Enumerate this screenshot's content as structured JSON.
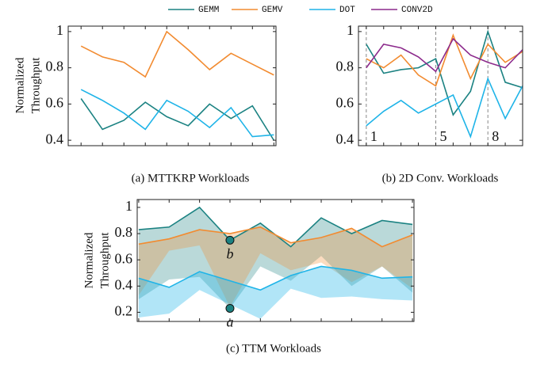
{
  "chart_data": [
    {
      "type": "line",
      "caption": "(a) MTTKRP Workloads",
      "ylabel": [
        "Normalized",
        "Throughput"
      ],
      "x": [
        1,
        2,
        3,
        4,
        5,
        6,
        7,
        8,
        9,
        10
      ],
      "xlim": [
        0.4,
        10.1
      ],
      "ylim": [
        0.37,
        1.03
      ],
      "yticks": [
        0.4,
        0.6,
        0.8,
        1
      ],
      "series": [
        {
          "color": "#1b8282",
          "values": [
            0.63,
            0.46,
            0.51,
            0.61,
            0.53,
            0.48,
            0.6,
            0.52,
            0.59,
            0.4
          ]
        },
        {
          "color": "#f28b30",
          "values": [
            0.92,
            0.86,
            0.83,
            0.75,
            1.0,
            0.9,
            0.79,
            0.88,
            0.82,
            0.76
          ]
        },
        {
          "color": "#1fb4e8",
          "values": [
            0.68,
            0.62,
            0.55,
            0.46,
            0.62,
            0.56,
            0.47,
            0.58,
            0.42,
            0.43
          ]
        }
      ]
    },
    {
      "type": "line",
      "caption": "(b) 2D Conv. Workloads",
      "x": [
        1,
        2,
        3,
        4,
        5,
        6,
        7,
        8,
        9,
        10
      ],
      "xlim": [
        0.55,
        10.0
      ],
      "ylim": [
        0.37,
        1.03
      ],
      "yticks": [
        0.4,
        0.6,
        0.8,
        1
      ],
      "markers": [
        1,
        5,
        8
      ],
      "series": [
        {
          "name": "GEMM",
          "color": "#1b8282",
          "values": [
            0.93,
            0.77,
            0.79,
            0.8,
            0.85,
            0.54,
            0.67,
            1.0,
            0.72,
            0.69
          ]
        },
        {
          "name": "GEMV",
          "color": "#f28b30",
          "values": [
            0.85,
            0.8,
            0.87,
            0.76,
            0.7,
            0.98,
            0.74,
            0.93,
            0.83,
            0.89
          ]
        },
        {
          "name": "DOT",
          "color": "#1fb4e8",
          "values": [
            0.48,
            0.56,
            0.62,
            0.55,
            0.6,
            0.65,
            0.42,
            0.74,
            0.52,
            0.7
          ]
        },
        {
          "name": "CONV2D",
          "color": "#8c2a8c",
          "values": [
            0.8,
            0.93,
            0.91,
            0.86,
            0.78,
            0.96,
            0.87,
            0.83,
            0.8,
            0.9
          ]
        }
      ]
    },
    {
      "type": "band",
      "caption": "(c) TTM Workloads",
      "ylabel": [
        "Normalized",
        "Throughput"
      ],
      "x": [
        1,
        2,
        3,
        4,
        5,
        6,
        7,
        8,
        9,
        10
      ],
      "xlim": [
        0.95,
        10.05
      ],
      "ylim": [
        0.13,
        1.06
      ],
      "yticks": [
        0.2,
        0.4,
        0.6,
        0.8,
        1
      ],
      "series": [
        {
          "color": "#1b8282",
          "values": [
            0.83,
            0.85,
            1.0,
            0.75,
            0.88,
            0.7,
            0.92,
            0.8,
            0.9,
            0.87
          ],
          "low": [
            0.3,
            0.45,
            0.47,
            0.23,
            0.55,
            0.44,
            0.63,
            0.4,
            0.55,
            0.35
          ]
        },
        {
          "color": "#f28b30",
          "values": [
            0.72,
            0.76,
            0.83,
            0.8,
            0.85,
            0.73,
            0.77,
            0.84,
            0.7,
            0.79
          ],
          "low": [
            0.33,
            0.67,
            0.71,
            0.24,
            0.65,
            0.52,
            0.58,
            0.43,
            0.55,
            0.38
          ]
        },
        {
          "color": "#1fb4e8",
          "values": [
            0.46,
            0.39,
            0.51,
            0.44,
            0.37,
            0.48,
            0.55,
            0.52,
            0.46,
            0.47
          ],
          "low": [
            0.16,
            0.19,
            0.37,
            0.26,
            0.15,
            0.38,
            0.31,
            0.32,
            0.3,
            0.29
          ]
        }
      ],
      "points": [
        {
          "label": "b",
          "x": 4,
          "y": 0.75
        },
        {
          "label": "a",
          "x": 4,
          "y": 0.23
        }
      ]
    }
  ]
}
